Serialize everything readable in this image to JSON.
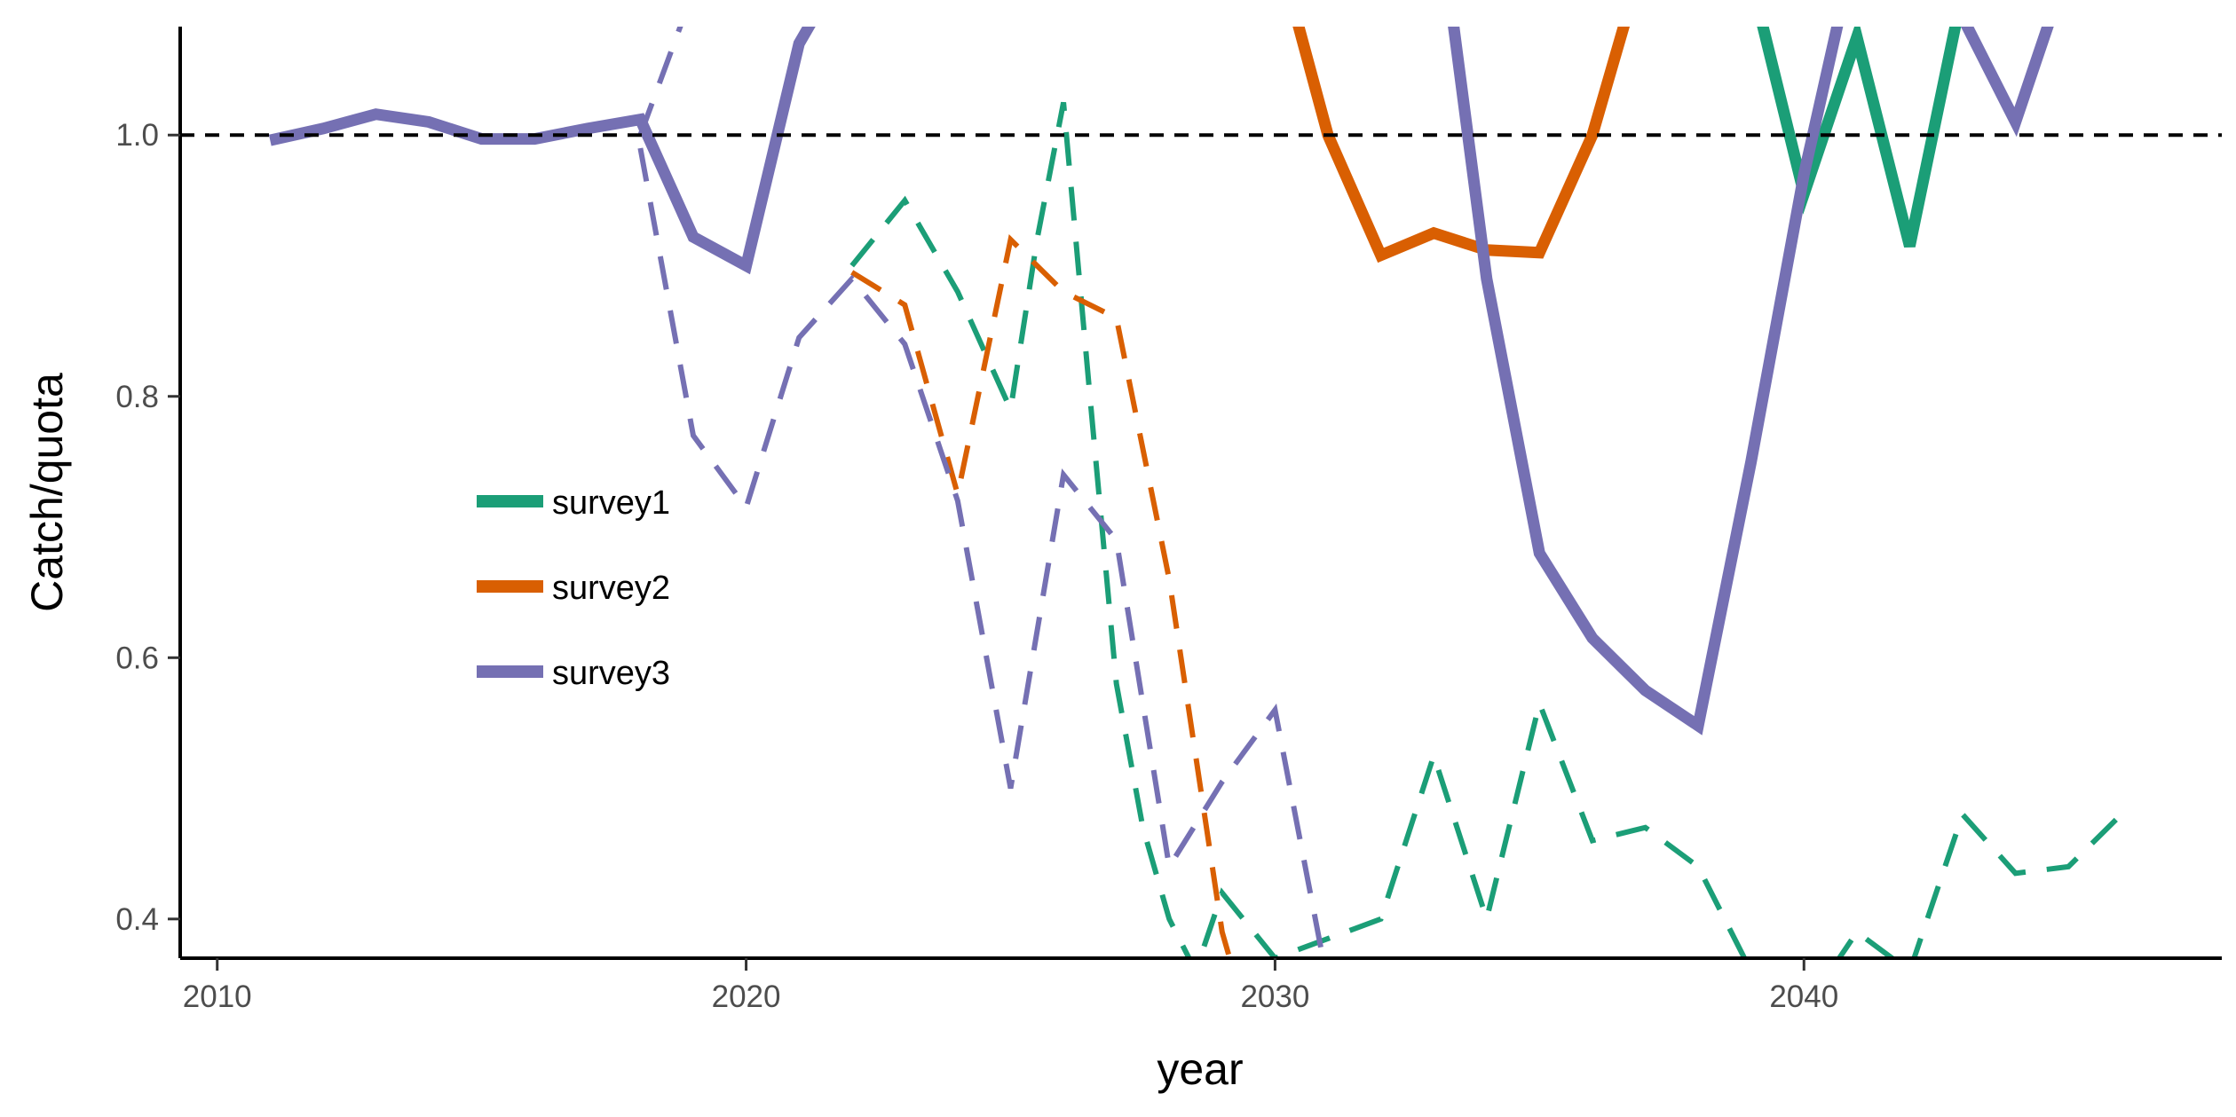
{
  "chart_data": {
    "type": "line",
    "xlabel": "year",
    "ylabel": "Catch/quota",
    "xlim": [
      2009.3,
      2047.9
    ],
    "ylim": [
      0.37,
      1.083
    ],
    "x_ticks": [
      2010,
      2020,
      2030,
      2040
    ],
    "x_tick_labels": [
      "2010",
      "2020",
      "2030",
      "2040"
    ],
    "y_ticks": [
      0.4,
      0.6,
      0.8,
      1.0
    ],
    "y_tick_labels": [
      "0.4",
      "0.6",
      "0.8",
      "1.0"
    ],
    "reference_line": {
      "y": 1.0,
      "style": "dashed",
      "color": "#000000"
    },
    "grid": false,
    "legend": {
      "placement": "inside-left",
      "entries": [
        {
          "label": "survey1",
          "color": "#1b9e77"
        },
        {
          "label": "survey2",
          "color": "#d95f02"
        },
        {
          "label": "survey3",
          "color": "#7570b3"
        }
      ]
    },
    "series": [
      {
        "name": "survey1",
        "style": "solid",
        "color": "#1b9e77",
        "x": [
          2039,
          2040,
          2041,
          2042,
          2043,
          2044
        ],
        "y": [
          1.12,
          0.955,
          1.075,
          0.915,
          1.11,
          1.1
        ]
      },
      {
        "name": "survey2",
        "style": "solid",
        "color": "#d95f02",
        "x": [
          2030,
          2031,
          2032,
          2033,
          2034,
          2035,
          2036,
          2037
        ],
        "y": [
          1.15,
          1.0,
          0.908,
          0.925,
          0.912,
          0.91,
          1.0,
          1.14
        ]
      },
      {
        "name": "survey3",
        "style": "solid",
        "color": "#7570b3",
        "x": [
          2011,
          2012,
          2013,
          2014,
          2015,
          2016,
          2017,
          2018,
          2019,
          2020,
          2021,
          2022
        ],
        "y": [
          0.996,
          1.005,
          1.016,
          1.01,
          0.997,
          0.997,
          1.005,
          1.012,
          0.922,
          0.9,
          1.07,
          1.14
        ]
      },
      {
        "name": "survey3",
        "style": "solid",
        "color": "#7570b3",
        "x": [
          2033,
          2034,
          2035,
          2036,
          2037,
          2038,
          2039,
          2040,
          2041,
          2042,
          2043,
          2044,
          2045
        ],
        "y": [
          1.2,
          0.89,
          0.68,
          0.615,
          0.575,
          0.548,
          0.75,
          0.97,
          1.15,
          1.2,
          1.09,
          1.01,
          1.13
        ]
      },
      {
        "name": "survey1",
        "style": "dashed",
        "color": "#1b9e77",
        "x": [
          2022,
          2023,
          2024,
          2025,
          2025.5,
          2026,
          2026.5,
          2027,
          2027.5,
          2028,
          2028.5,
          2029,
          2030,
          2031,
          2032,
          2033,
          2034,
          2035,
          2036,
          2037,
          2038,
          2039,
          2040,
          2041,
          2042,
          2043,
          2044,
          2045,
          2046
        ],
        "y": [
          0.9,
          0.95,
          0.88,
          0.79,
          0.92,
          1.025,
          0.8,
          0.58,
          0.47,
          0.4,
          0.36,
          0.42,
          0.37,
          0.385,
          0.4,
          0.525,
          0.4,
          0.565,
          0.46,
          0.47,
          0.44,
          0.36,
          0.33,
          0.39,
          0.36,
          0.48,
          0.435,
          0.44,
          0.48
        ]
      },
      {
        "name": "survey2",
        "style": "dashed",
        "color": "#d95f02",
        "x": [
          2022,
          2023,
          2024,
          2025,
          2026,
          2027,
          2028,
          2029,
          2029.5
        ],
        "y": [
          0.895,
          0.87,
          0.725,
          0.92,
          0.88,
          0.86,
          0.66,
          0.39,
          0.32
        ]
      },
      {
        "name": "survey3",
        "style": "dashed",
        "color": "#7570b3",
        "x": [
          2018,
          2019,
          2020,
          2021,
          2022,
          2023,
          2024,
          2025,
          2026,
          2027,
          2028,
          2029,
          2030,
          2031
        ],
        "y": [
          0.99,
          0.77,
          0.715,
          0.845,
          0.89,
          0.84,
          0.72,
          0.5,
          0.74,
          0.69,
          0.44,
          0.505,
          0.56,
          0.35
        ]
      },
      {
        "name": "survey3",
        "style": "dashed",
        "color": "#7570b3",
        "x": [
          2018,
          2019
        ],
        "y": [
          1.0,
          1.11
        ]
      }
    ]
  }
}
